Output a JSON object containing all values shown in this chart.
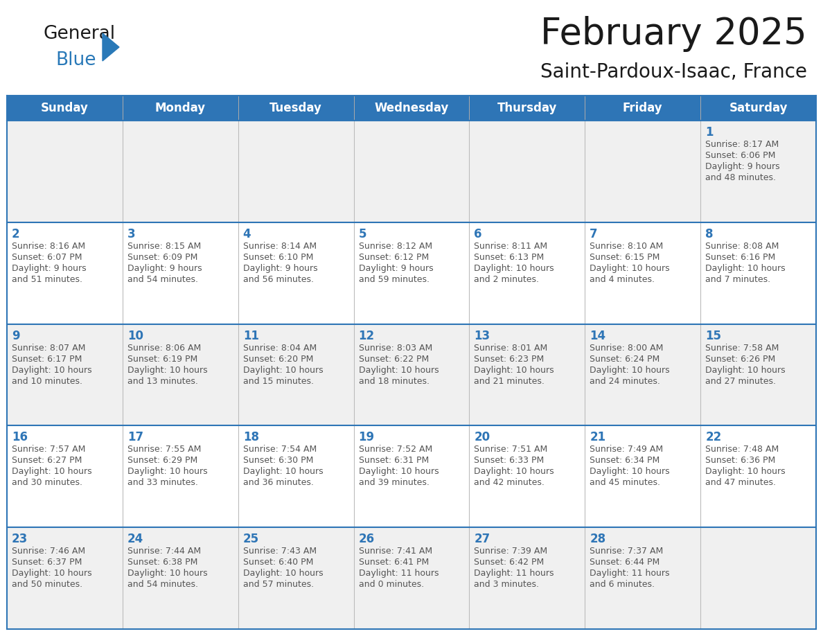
{
  "title": "February 2025",
  "subtitle": "Saint-Pardoux-Isaac, France",
  "days_of_week": [
    "Sunday",
    "Monday",
    "Tuesday",
    "Wednesday",
    "Thursday",
    "Friday",
    "Saturday"
  ],
  "header_bg": "#2E75B6",
  "header_text": "#FFFFFF",
  "cell_bg_white": "#FFFFFF",
  "cell_bg_gray": "#F0F0F0",
  "border_color": "#2E75B6",
  "day_num_color": "#2E75B6",
  "text_color": "#555555",
  "title_color": "#1A1A1A",
  "logo_general_color": "#1A1A1A",
  "logo_blue_color": "#2979B8",
  "calendar_data": [
    [
      null,
      null,
      null,
      null,
      null,
      null,
      {
        "day": 1,
        "sunrise": "8:17 AM",
        "sunset": "6:06 PM",
        "daylight": "9 hours",
        "daylight2": "and 48 minutes."
      }
    ],
    [
      {
        "day": 2,
        "sunrise": "8:16 AM",
        "sunset": "6:07 PM",
        "daylight": "9 hours",
        "daylight2": "and 51 minutes."
      },
      {
        "day": 3,
        "sunrise": "8:15 AM",
        "sunset": "6:09 PM",
        "daylight": "9 hours",
        "daylight2": "and 54 minutes."
      },
      {
        "day": 4,
        "sunrise": "8:14 AM",
        "sunset": "6:10 PM",
        "daylight": "9 hours",
        "daylight2": "and 56 minutes."
      },
      {
        "day": 5,
        "sunrise": "8:12 AM",
        "sunset": "6:12 PM",
        "daylight": "9 hours",
        "daylight2": "and 59 minutes."
      },
      {
        "day": 6,
        "sunrise": "8:11 AM",
        "sunset": "6:13 PM",
        "daylight": "10 hours",
        "daylight2": "and 2 minutes."
      },
      {
        "day": 7,
        "sunrise": "8:10 AM",
        "sunset": "6:15 PM",
        "daylight": "10 hours",
        "daylight2": "and 4 minutes."
      },
      {
        "day": 8,
        "sunrise": "8:08 AM",
        "sunset": "6:16 PM",
        "daylight": "10 hours",
        "daylight2": "and 7 minutes."
      }
    ],
    [
      {
        "day": 9,
        "sunrise": "8:07 AM",
        "sunset": "6:17 PM",
        "daylight": "10 hours",
        "daylight2": "and 10 minutes."
      },
      {
        "day": 10,
        "sunrise": "8:06 AM",
        "sunset": "6:19 PM",
        "daylight": "10 hours",
        "daylight2": "and 13 minutes."
      },
      {
        "day": 11,
        "sunrise": "8:04 AM",
        "sunset": "6:20 PM",
        "daylight": "10 hours",
        "daylight2": "and 15 minutes."
      },
      {
        "day": 12,
        "sunrise": "8:03 AM",
        "sunset": "6:22 PM",
        "daylight": "10 hours",
        "daylight2": "and 18 minutes."
      },
      {
        "day": 13,
        "sunrise": "8:01 AM",
        "sunset": "6:23 PM",
        "daylight": "10 hours",
        "daylight2": "and 21 minutes."
      },
      {
        "day": 14,
        "sunrise": "8:00 AM",
        "sunset": "6:24 PM",
        "daylight": "10 hours",
        "daylight2": "and 24 minutes."
      },
      {
        "day": 15,
        "sunrise": "7:58 AM",
        "sunset": "6:26 PM",
        "daylight": "10 hours",
        "daylight2": "and 27 minutes."
      }
    ],
    [
      {
        "day": 16,
        "sunrise": "7:57 AM",
        "sunset": "6:27 PM",
        "daylight": "10 hours",
        "daylight2": "and 30 minutes."
      },
      {
        "day": 17,
        "sunrise": "7:55 AM",
        "sunset": "6:29 PM",
        "daylight": "10 hours",
        "daylight2": "and 33 minutes."
      },
      {
        "day": 18,
        "sunrise": "7:54 AM",
        "sunset": "6:30 PM",
        "daylight": "10 hours",
        "daylight2": "and 36 minutes."
      },
      {
        "day": 19,
        "sunrise": "7:52 AM",
        "sunset": "6:31 PM",
        "daylight": "10 hours",
        "daylight2": "and 39 minutes."
      },
      {
        "day": 20,
        "sunrise": "7:51 AM",
        "sunset": "6:33 PM",
        "daylight": "10 hours",
        "daylight2": "and 42 minutes."
      },
      {
        "day": 21,
        "sunrise": "7:49 AM",
        "sunset": "6:34 PM",
        "daylight": "10 hours",
        "daylight2": "and 45 minutes."
      },
      {
        "day": 22,
        "sunrise": "7:48 AM",
        "sunset": "6:36 PM",
        "daylight": "10 hours",
        "daylight2": "and 47 minutes."
      }
    ],
    [
      {
        "day": 23,
        "sunrise": "7:46 AM",
        "sunset": "6:37 PM",
        "daylight": "10 hours",
        "daylight2": "and 50 minutes."
      },
      {
        "day": 24,
        "sunrise": "7:44 AM",
        "sunset": "6:38 PM",
        "daylight": "10 hours",
        "daylight2": "and 54 minutes."
      },
      {
        "day": 25,
        "sunrise": "7:43 AM",
        "sunset": "6:40 PM",
        "daylight": "10 hours",
        "daylight2": "and 57 minutes."
      },
      {
        "day": 26,
        "sunrise": "7:41 AM",
        "sunset": "6:41 PM",
        "daylight": "11 hours",
        "daylight2": "and 0 minutes."
      },
      {
        "day": 27,
        "sunrise": "7:39 AM",
        "sunset": "6:42 PM",
        "daylight": "11 hours",
        "daylight2": "and 3 minutes."
      },
      {
        "day": 28,
        "sunrise": "7:37 AM",
        "sunset": "6:44 PM",
        "daylight": "11 hours",
        "daylight2": "and 6 minutes."
      },
      null
    ]
  ]
}
